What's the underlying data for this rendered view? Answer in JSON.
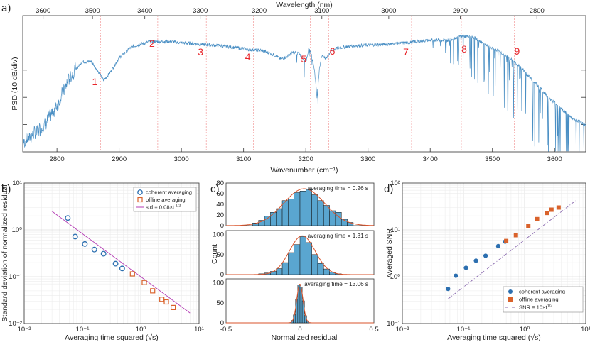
{
  "chart_data": [
    {
      "type": "line",
      "panel": "a)",
      "title": "",
      "xlabel": "Wavenumber (cm⁻¹)",
      "ylabel": "PSD (10 dB/div)",
      "x2label": "Wavelength (nm)",
      "xlim": [
        2745,
        3650
      ],
      "ylim": [
        0,
        5
      ],
      "xticks": [
        "2800",
        "2900",
        "3000",
        "3100",
        "3200",
        "3300",
        "3400",
        "3500",
        "3600"
      ],
      "x2ticks": [
        "3600",
        "3500",
        "3400",
        "3300",
        "3200",
        "3100",
        "3000",
        "2900",
        "2800"
      ],
      "series": [
        {
          "name": "PSD",
          "color": "#4a8fc4",
          "x": [
            2745,
            2760,
            2780,
            2800,
            2820,
            2840,
            2855,
            2865,
            2875,
            2885,
            2900,
            2920,
            2950,
            2980,
            3000,
            3030,
            3060,
            3090,
            3110,
            3130,
            3150,
            3160,
            3170,
            3180,
            3190,
            3200,
            3205,
            3210,
            3214,
            3218,
            3222,
            3226,
            3232,
            3240,
            3250,
            3270,
            3300,
            3330,
            3360,
            3400,
            3430,
            3450,
            3470,
            3490,
            3510,
            3530,
            3550,
            3570,
            3590,
            3610,
            3630,
            3650
          ],
          "y": [
            0.3,
            0.6,
            1.0,
            1.7,
            2.7,
            3.3,
            3.32,
            3.0,
            2.62,
            2.9,
            3.45,
            3.85,
            4.05,
            4.05,
            4.0,
            3.95,
            3.9,
            3.82,
            3.75,
            3.72,
            3.55,
            3.4,
            3.5,
            3.65,
            3.6,
            3.3,
            3.8,
            3.5,
            3.0,
            2.0,
            3.1,
            3.55,
            3.4,
            3.7,
            3.8,
            3.88,
            3.92,
            3.95,
            4.0,
            4.1,
            4.1,
            4.25,
            4.2,
            3.9,
            3.7,
            3.4,
            3.0,
            2.5,
            2.0,
            1.6,
            1.2,
            1.0
          ]
        }
      ],
      "markers": [
        {
          "label": "1",
          "x": 2870
        },
        {
          "label": "2",
          "x": 2962
        },
        {
          "label": "3",
          "x": 3040
        },
        {
          "label": "4",
          "x": 3116
        },
        {
          "label": "5",
          "x": 3207
        },
        {
          "label": "6",
          "x": 3237
        },
        {
          "label": "7",
          "x": 3370
        },
        {
          "label": "8",
          "x": 3450
        },
        {
          "label": "9",
          "x": 3535
        }
      ]
    },
    {
      "type": "scatter",
      "panel": "b)",
      "scale": "log-log",
      "xlabel": "Averaging time squared (√s)",
      "ylabel": "Standard deviation of normalized residual",
      "xlim": [
        0.01,
        10
      ],
      "ylim": [
        0.01,
        10
      ],
      "xticks": [
        "10⁻²",
        "10⁻¹",
        "10⁰",
        "10¹"
      ],
      "yticks": [
        "10⁻²",
        "10⁻¹",
        "10⁰",
        "10¹"
      ],
      "series": [
        {
          "name": "coherent averaging",
          "marker": "circle",
          "color": "#2c6fb0",
          "x": [
            0.056,
            0.075,
            0.11,
            0.16,
            0.23,
            0.37,
            0.48
          ],
          "y": [
            1.8,
            0.72,
            0.5,
            0.38,
            0.31,
            0.19,
            0.15
          ]
        },
        {
          "name": "offline averaging",
          "marker": "square",
          "color": "#d9622b",
          "x": [
            0.72,
            1.15,
            1.6,
            2.3,
            2.75,
            3.6
          ],
          "y": [
            0.115,
            0.075,
            0.05,
            0.033,
            0.029,
            0.022
          ]
        },
        {
          "name": "std = 0.08×t⁻¹ᐟ²",
          "marker": "line",
          "color": "#b43cb4",
          "x": [
            0.03,
            7.0
          ],
          "y": [
            2.5,
            0.0168
          ]
        }
      ],
      "legend": [
        "coherent averaging",
        "offline averaging",
        "std = 0.08×t"
      ],
      "legend_sup": "-1/2"
    },
    {
      "type": "bar",
      "panel": "c)",
      "xlabel": "Normalized residual",
      "ylabel": "Count",
      "xlim": [
        -0.5,
        0.5
      ],
      "xticks": [
        "-0.5",
        "0",
        "0.5"
      ],
      "subplots": [
        {
          "annotation": "averaging time = 0.26 s",
          "yticks": [
            "0",
            "20",
            "40",
            "60",
            "80"
          ],
          "ymax": 80,
          "bins": [
            -0.32,
            -0.28,
            -0.24,
            -0.2,
            -0.16,
            -0.12,
            -0.08,
            -0.04,
            0,
            0.04,
            0.08,
            0.12,
            0.16,
            0.2,
            0.24,
            0.28,
            0.32,
            0.36
          ],
          "counts": [
            5,
            10,
            18,
            25,
            32,
            47,
            50,
            62,
            65,
            68,
            58,
            47,
            38,
            28,
            25,
            12,
            6
          ]
        },
        {
          "annotation": "averaging time = 1.31 s",
          "yticks": [
            "0",
            "50",
            "100"
          ],
          "ymax": 110,
          "bins": [
            -0.28,
            -0.24,
            -0.2,
            -0.16,
            -0.12,
            -0.08,
            -0.04,
            0,
            0.04,
            0.08,
            0.12,
            0.16,
            0.2,
            0.24,
            0.28
          ],
          "counts": [
            2,
            4,
            8,
            15,
            30,
            55,
            75,
            95,
            80,
            50,
            28,
            14,
            6,
            2
          ]
        },
        {
          "annotation": "averaging time = 13.06 s",
          "yticks": [
            "0",
            "50",
            "100"
          ],
          "ymax": 110,
          "bins": [
            -0.06,
            -0.045,
            -0.03,
            -0.015,
            0,
            0.015,
            0.03,
            0.045,
            0.06
          ],
          "counts": [
            6,
            20,
            60,
            95,
            90,
            55,
            18,
            5
          ]
        }
      ]
    },
    {
      "type": "scatter",
      "panel": "d)",
      "scale": "log-log",
      "xlabel": "Averaging time squared (√s)",
      "ylabel": "Averaged SNR",
      "xlim": [
        0.01,
        10
      ],
      "ylim": [
        0.1,
        100
      ],
      "xticks": [
        "10⁻²",
        "10⁻¹",
        "10⁰",
        "10¹"
      ],
      "yticks": [
        "10⁻¹",
        "10⁰",
        "10¹",
        "10²"
      ],
      "series": [
        {
          "name": "coherent averaging",
          "marker": "dot",
          "color": "#2c6fb0",
          "x": [
            0.056,
            0.075,
            0.11,
            0.16,
            0.23,
            0.37,
            0.48
          ],
          "y": [
            0.55,
            1.05,
            1.55,
            2.2,
            2.8,
            4.5,
            5.6
          ]
        },
        {
          "name": "offline averaging",
          "marker": "filled-square",
          "color": "#d9622b",
          "x": [
            0.5,
            0.72,
            1.15,
            1.6,
            2.3,
            2.75,
            3.6
          ],
          "y": [
            5.8,
            7.7,
            12,
            17,
            23,
            27,
            30
          ]
        },
        {
          "name": "SNR = 10×t",
          "marker": "dashline",
          "color": "#8b6bb0",
          "x": [
            0.055,
            6.8
          ],
          "y": [
            0.33,
            42
          ]
        }
      ],
      "legend": [
        "coherent averaging",
        "offline averaging",
        "SNR = 10×t"
      ],
      "legend_sup": "1/2"
    }
  ]
}
